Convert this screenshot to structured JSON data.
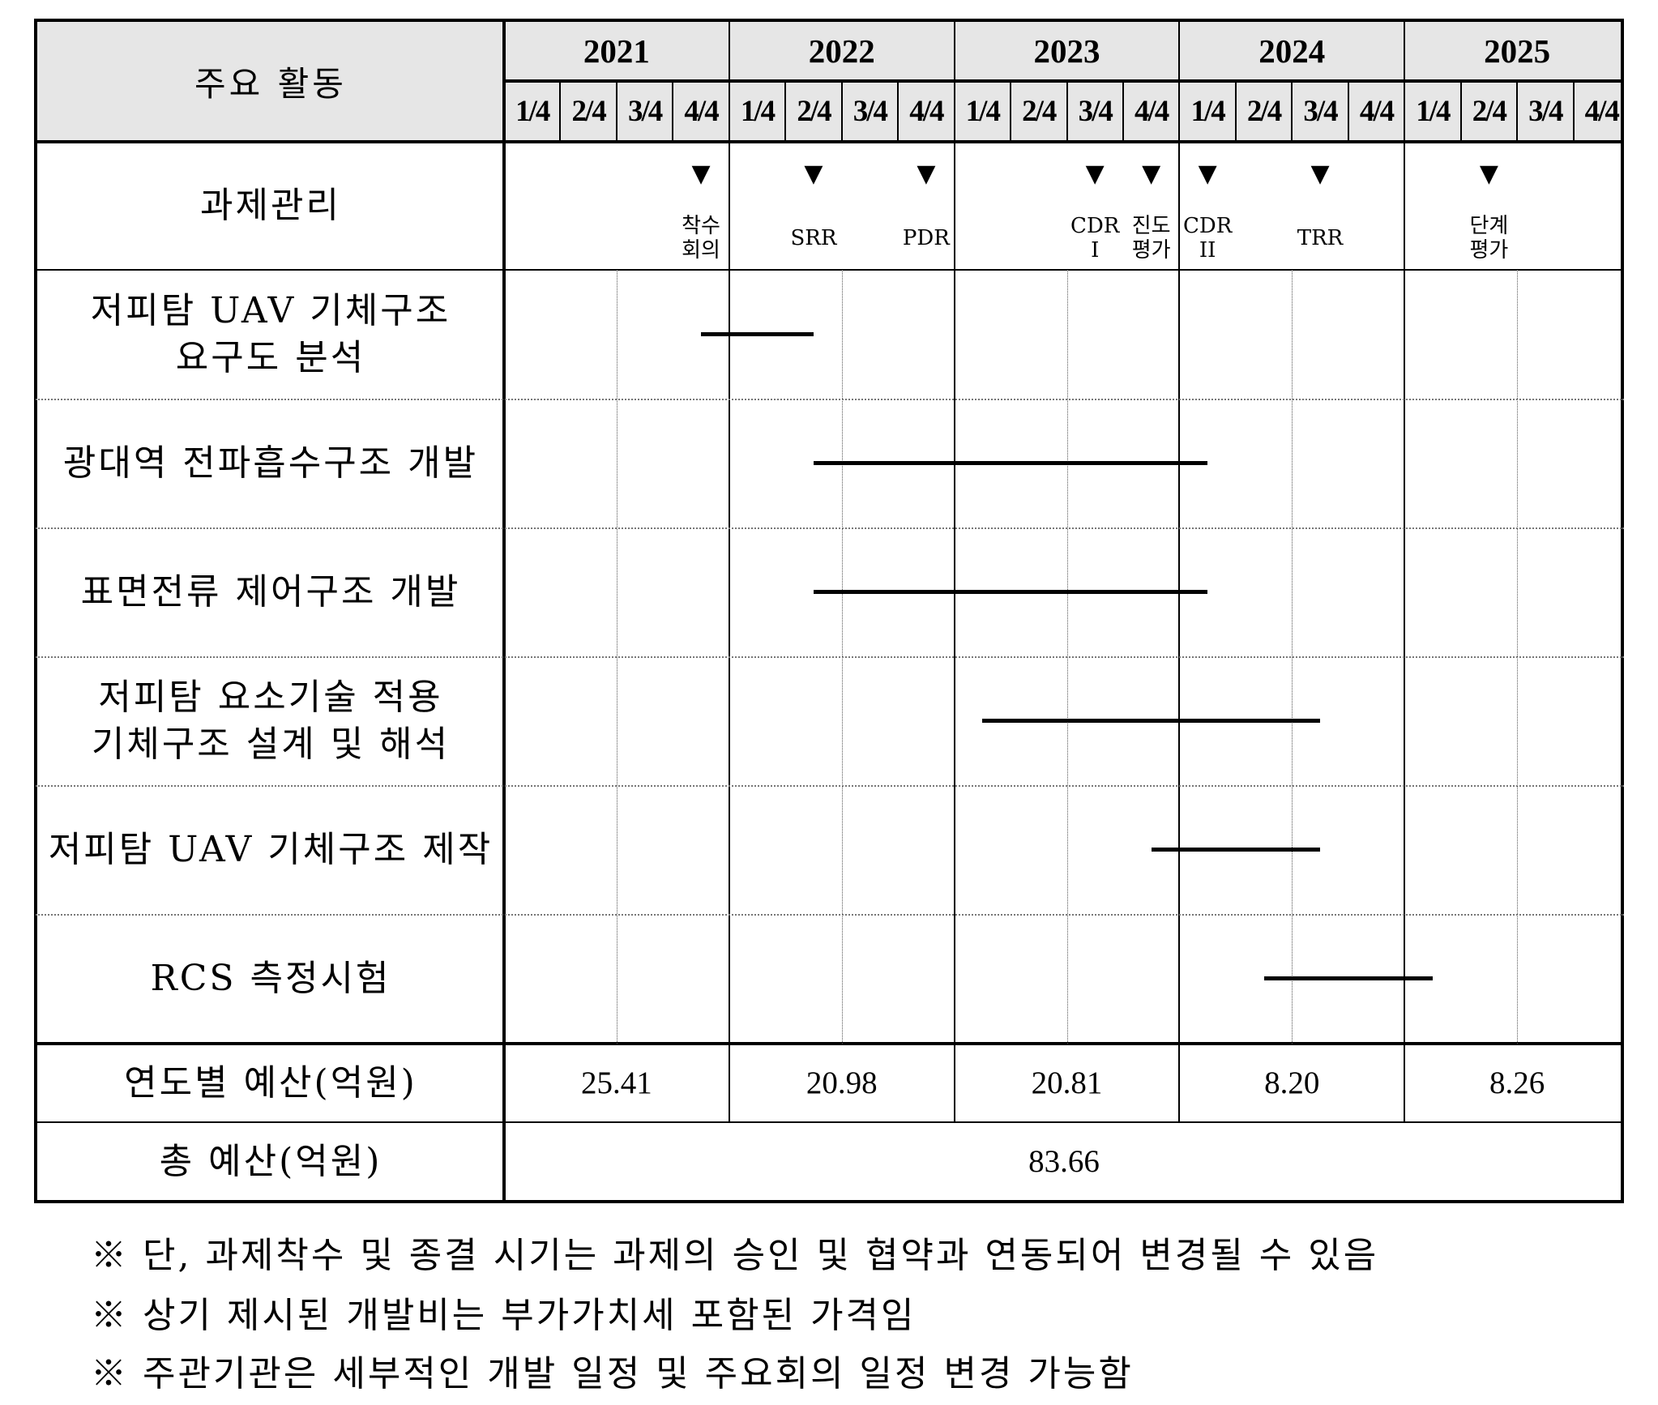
{
  "header": {
    "title": "주요 활동",
    "years": [
      "2021",
      "2022",
      "2023",
      "2024",
      "2025"
    ],
    "quarters": [
      "1/4",
      "2/4",
      "3/4",
      "4/4",
      "1/4",
      "2/4",
      "3/4",
      "4/4",
      "1/4",
      "2/4",
      "3/4",
      "4/4",
      "1/4",
      "2/4",
      "3/4",
      "4/4",
      "1/4",
      "2/4",
      "3/4",
      "4/4"
    ]
  },
  "milestone_row": {
    "label": "과제관리",
    "milestones": [
      {
        "label": "착수\n회의",
        "quarter": "2021 4/4"
      },
      {
        "label": "SRR",
        "quarter": "2022 2/4"
      },
      {
        "label": "PDR",
        "quarter": "2022 4/4"
      },
      {
        "label": "CDR\nI",
        "quarter": "2023 3/4"
      },
      {
        "label": "진도\n평가",
        "quarter": "2023 4/4"
      },
      {
        "label": "CDR\nII",
        "quarter": "2024 1/4"
      },
      {
        "label": "TRR",
        "quarter": "2024 3/4"
      },
      {
        "label": "단계\n평가",
        "quarter": "2025 2/4"
      }
    ]
  },
  "activities": [
    {
      "label": "저피탐 UAV 기체구조\n요구도 분석",
      "start": "2021 4/4",
      "end": "2022 2/4"
    },
    {
      "label": "광대역 전파흡수구조 개발",
      "start": "2022 2/4",
      "end": "2024 1/4"
    },
    {
      "label": "표면전류 제어구조 개발",
      "start": "2022 2/4",
      "end": "2024 1/4"
    },
    {
      "label": "저피탐 요소기술 적용\n기체구조 설계 및 해석",
      "start": "2023 1/4",
      "end": "2024 3/4"
    },
    {
      "label": "저피탐 UAV 기체구조 제작",
      "start": "2023 4/4",
      "end": "2024 3/4"
    },
    {
      "label": "RCS 측정시험",
      "start": "2024 2/4",
      "end": "2025 1/4"
    }
  ],
  "budget": {
    "yearly_label": "연도별 예산(억원)",
    "yearly_values": [
      "25.41",
      "20.98",
      "20.81",
      "8.20",
      "8.26"
    ],
    "total_label": "총 예산(억원)",
    "total_value": "83.66"
  },
  "notes": [
    "※  단, 과제착수 및 종결 시기는 과제의 승인 및 협약과 연동되어 변경될 수 있음",
    "※  상기 제시된 개발비는 부가가치세 포함된 가격임",
    "※  주관기관은 세부적인 개발 일정 및 주요회의 일정 변경 가능함"
  ]
}
